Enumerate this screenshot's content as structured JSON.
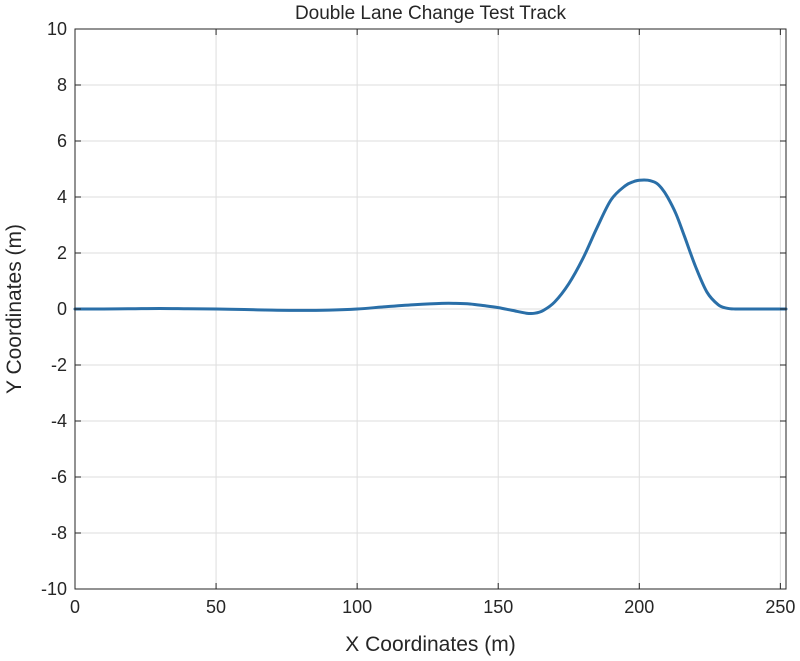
{
  "chart_data": {
    "type": "line",
    "title": "Double Lane Change Test Track",
    "xlabel": "X Coordinates (m)",
    "ylabel": "Y Coordinates (m)",
    "xlim": [
      0,
      252
    ],
    "ylim": [
      -10,
      10
    ],
    "xticks": [
      0,
      50,
      100,
      150,
      200,
      250
    ],
    "yticks": [
      -10,
      -8,
      -6,
      -4,
      -2,
      0,
      2,
      4,
      6,
      8,
      10
    ],
    "grid": true,
    "legend": "none",
    "series": [
      {
        "color": "#2a6fa8",
        "x": [
          0,
          10,
          20,
          30,
          40,
          50,
          60,
          70,
          80,
          90,
          100,
          110,
          120,
          130,
          135,
          140,
          145,
          150,
          155,
          160,
          163,
          166,
          170,
          175,
          180,
          185,
          190,
          195,
          198,
          200,
          203,
          206,
          208,
          210,
          213,
          216,
          220,
          224,
          228,
          231,
          234,
          237,
          240,
          245,
          252
        ],
        "y": [
          0.0,
          0.0,
          0.01,
          0.02,
          0.01,
          0.0,
          -0.02,
          -0.04,
          -0.05,
          -0.04,
          0.0,
          0.08,
          0.15,
          0.2,
          0.2,
          0.18,
          0.12,
          0.05,
          -0.05,
          -0.15,
          -0.15,
          -0.05,
          0.25,
          0.9,
          1.8,
          2.9,
          3.9,
          4.4,
          4.55,
          4.6,
          4.6,
          4.5,
          4.3,
          4.0,
          3.4,
          2.6,
          1.5,
          0.6,
          0.15,
          0.03,
          0.0,
          0.0,
          0.0,
          0.0,
          0.0
        ]
      }
    ]
  }
}
